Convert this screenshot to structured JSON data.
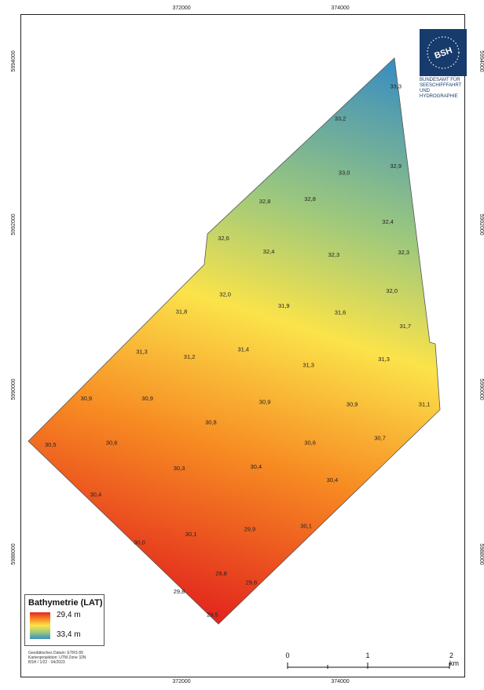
{
  "axes": {
    "x_ticks": [
      "372000",
      "374000"
    ],
    "y_ticks": [
      "5994000",
      "5992000",
      "5990000",
      "5988000"
    ]
  },
  "depth_labels": [
    {
      "text": "33,3",
      "e": 374700,
      "n": 5993670
    },
    {
      "text": "33,2",
      "e": 374000,
      "n": 5993280
    },
    {
      "text": "33,0",
      "e": 374050,
      "n": 5992620
    },
    {
      "text": "32,9",
      "e": 374700,
      "n": 5992700
    },
    {
      "text": "32,8",
      "e": 373050,
      "n": 5992270
    },
    {
      "text": "32,8",
      "e": 373620,
      "n": 5992300
    },
    {
      "text": "32,4",
      "e": 374600,
      "n": 5992020
    },
    {
      "text": "32,6",
      "e": 372530,
      "n": 5991820
    },
    {
      "text": "32,4",
      "e": 373100,
      "n": 5991660
    },
    {
      "text": "32,3",
      "e": 373920,
      "n": 5991620
    },
    {
      "text": "32,3",
      "e": 374800,
      "n": 5991650
    },
    {
      "text": "32,0",
      "e": 374650,
      "n": 5991180
    },
    {
      "text": "32,0",
      "e": 372550,
      "n": 5991140
    },
    {
      "text": "31,9",
      "e": 373290,
      "n": 5991000
    },
    {
      "text": "31,8",
      "e": 372000,
      "n": 5990930
    },
    {
      "text": "31,6",
      "e": 374000,
      "n": 5990920
    },
    {
      "text": "31,7",
      "e": 374820,
      "n": 5990750
    },
    {
      "text": "31,4",
      "e": 372780,
      "n": 5990470
    },
    {
      "text": "31,3",
      "e": 371500,
      "n": 5990440
    },
    {
      "text": "31,2",
      "e": 372100,
      "n": 5990380
    },
    {
      "text": "31,3",
      "e": 373600,
      "n": 5990280
    },
    {
      "text": "31,3",
      "e": 374550,
      "n": 5990350
    },
    {
      "text": "30,9",
      "e": 370800,
      "n": 5989870
    },
    {
      "text": "30,9",
      "e": 371570,
      "n": 5989870
    },
    {
      "text": "30,9",
      "e": 373050,
      "n": 5989830
    },
    {
      "text": "30,9",
      "e": 374150,
      "n": 5989800
    },
    {
      "text": "31,1",
      "e": 375060,
      "n": 5989800
    },
    {
      "text": "30,8",
      "e": 372370,
      "n": 5989580
    },
    {
      "text": "30,5",
      "e": 370350,
      "n": 5989310
    },
    {
      "text": "30,6",
      "e": 371120,
      "n": 5989330
    },
    {
      "text": "30,6",
      "e": 373620,
      "n": 5989330
    },
    {
      "text": "30,7",
      "e": 374500,
      "n": 5989390
    },
    {
      "text": "30,3",
      "e": 371970,
      "n": 5989020
    },
    {
      "text": "30,4",
      "e": 372940,
      "n": 5989040
    },
    {
      "text": "30,4",
      "e": 373900,
      "n": 5988880
    },
    {
      "text": "30,4",
      "e": 370920,
      "n": 5988700
    },
    {
      "text": "29,9",
      "e": 372860,
      "n": 5988280
    },
    {
      "text": "30,1",
      "e": 373570,
      "n": 5988320
    },
    {
      "text": "30,1",
      "e": 372120,
      "n": 5988220
    },
    {
      "text": "30,0",
      "e": 371470,
      "n": 5988120
    },
    {
      "text": "29,8",
      "e": 372500,
      "n": 5987740
    },
    {
      "text": "29,8",
      "e": 372880,
      "n": 5987630
    },
    {
      "text": "29,8",
      "e": 371970,
      "n": 5987520
    },
    {
      "text": "29,5",
      "e": 372390,
      "n": 5987240
    }
  ],
  "logo": {
    "badge": "BSH",
    "lines": [
      "BUNDESAMT FÜR",
      "SEESCHIFFFAHRT",
      "UND",
      "HYDROGRAPHIE"
    ]
  },
  "legend": {
    "title": "Bathymetrie (LAT)",
    "max_label": "29,4 m",
    "min_label": "33,4 m",
    "ramp_colors": [
      "#e2261e",
      "#f78a22",
      "#fbe34a",
      "#9cc87d",
      "#3a8ec0"
    ]
  },
  "metadata": {
    "lines": [
      "Geodätisches Datum: ETRS 89",
      "Kartenprojektion: UTM Zone 32N",
      "BSH / 1/22 · 04/2023"
    ]
  },
  "scalebar": {
    "labels": [
      "0",
      "1",
      "2 km"
    ]
  }
}
